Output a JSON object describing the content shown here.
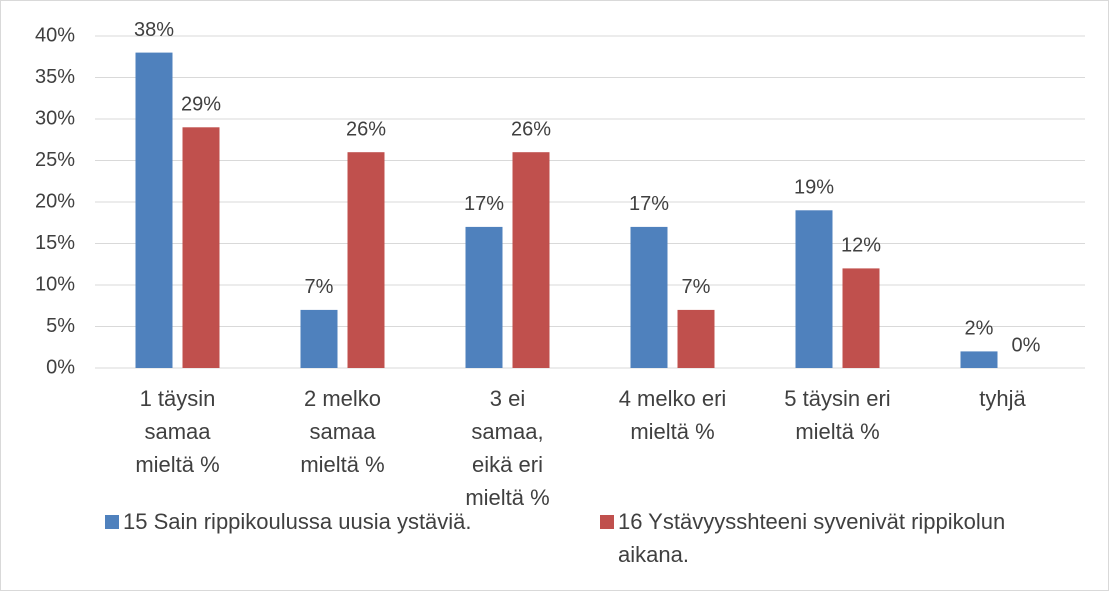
{
  "chart_data": {
    "type": "bar",
    "categories": [
      "1 täysin samaa mieltä %",
      "2 melko samaa mieltä %",
      "3 ei samaa, eikä eri mieltä %",
      "4 melko eri mieltä %",
      "5 täysin eri mieltä %",
      "tyhjä"
    ],
    "series": [
      {
        "name": "15 Sain rippikoulussa uusia ystäviä.",
        "color": "#4f81bd",
        "values": [
          38,
          7,
          17,
          17,
          19,
          2
        ],
        "value_labels": [
          "38%",
          "7%",
          "17%",
          "17%",
          "19%",
          "2%"
        ]
      },
      {
        "name": "16 Ystävyysshteeni syvenivät rippikolun aikana.",
        "color": "#c0504d",
        "values": [
          29,
          26,
          26,
          7,
          12,
          0
        ],
        "value_labels": [
          "29%",
          "26%",
          "26%",
          "7%",
          "12%",
          "0%"
        ]
      }
    ],
    "ylim": [
      0,
      40
    ],
    "yticks": [
      {
        "value": 0,
        "label": "0%"
      },
      {
        "value": 5,
        "label": "5%"
      },
      {
        "value": 10,
        "label": "10%"
      },
      {
        "value": 15,
        "label": "15%"
      },
      {
        "value": 20,
        "label": "20%"
      },
      {
        "value": 25,
        "label": "25%"
      },
      {
        "value": 30,
        "label": "30%"
      },
      {
        "value": 35,
        "label": "35%"
      },
      {
        "value": 40,
        "label": "40%"
      }
    ],
    "grid": true,
    "legend": "bottom"
  }
}
